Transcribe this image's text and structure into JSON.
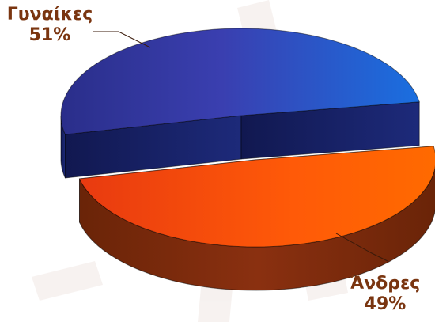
{
  "chart_data": {
    "type": "pie",
    "style": "3d-exploded",
    "slices": [
      {
        "label": "Γυναίκες",
        "percent_label": "51%",
        "value": 51,
        "color": "#2f3fae"
      },
      {
        "label": "Άνδρες",
        "percent_label": "49%",
        "value": 49,
        "color": "#f04010"
      }
    ],
    "legend": "none",
    "label_color": "#7a3510"
  }
}
